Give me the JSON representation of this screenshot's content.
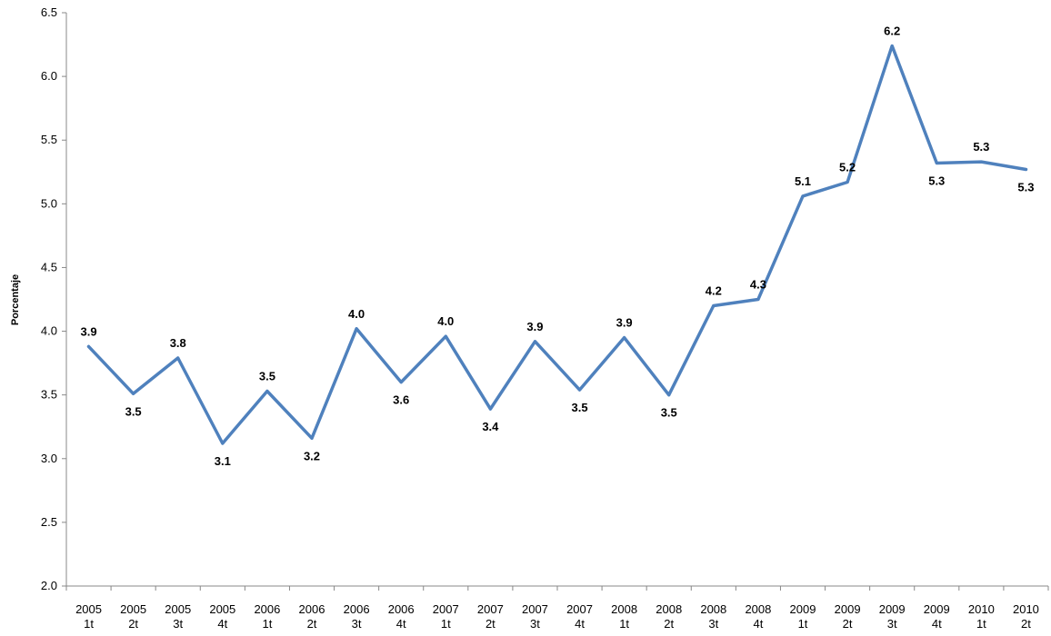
{
  "chart_data": {
    "type": "line",
    "ylabel": "Porcentaje",
    "xlabel": "",
    "ylim": [
      2.0,
      6.5
    ],
    "yticks": [
      "2.0",
      "2.5",
      "3.0",
      "3.5",
      "4.0",
      "4.5",
      "5.0",
      "5.5",
      "6.0",
      "6.5"
    ],
    "grid": false,
    "line_color": "#4F81BD",
    "categories": [
      [
        "2005",
        "1t"
      ],
      [
        "2005",
        "2t"
      ],
      [
        "2005",
        "3t"
      ],
      [
        "2005",
        "4t"
      ],
      [
        "2006",
        "1t"
      ],
      [
        "2006",
        "2t"
      ],
      [
        "2006",
        "3t"
      ],
      [
        "2006",
        "4t"
      ],
      [
        "2007",
        "1t"
      ],
      [
        "2007",
        "2t"
      ],
      [
        "2007",
        "3t"
      ],
      [
        "2007",
        "4t"
      ],
      [
        "2008",
        "1t"
      ],
      [
        "2008",
        "2t"
      ],
      [
        "2008",
        "3t"
      ],
      [
        "2008",
        "4t"
      ],
      [
        "2009",
        "1t"
      ],
      [
        "2009",
        "2t"
      ],
      [
        "2009",
        "3t"
      ],
      [
        "2009",
        "4t"
      ],
      [
        "2010",
        "1t"
      ],
      [
        "2010",
        "2t"
      ]
    ],
    "values": [
      3.88,
      3.51,
      3.79,
      3.12,
      3.53,
      3.16,
      4.02,
      3.6,
      3.96,
      3.39,
      3.92,
      3.54,
      3.95,
      3.5,
      4.2,
      4.25,
      5.06,
      5.17,
      6.24,
      5.32,
      5.33,
      5.27
    ],
    "data_labels": [
      "3.9",
      "3.5",
      "3.8",
      "3.1",
      "3.5",
      "3.2",
      "4.0",
      "3.6",
      "4.0",
      "3.4",
      "3.9",
      "3.5",
      "3.9",
      "3.5",
      "4.2",
      "4.3",
      "5.1",
      "5.2",
      "6.2",
      "5.3",
      "5.3",
      "5.3"
    ]
  }
}
